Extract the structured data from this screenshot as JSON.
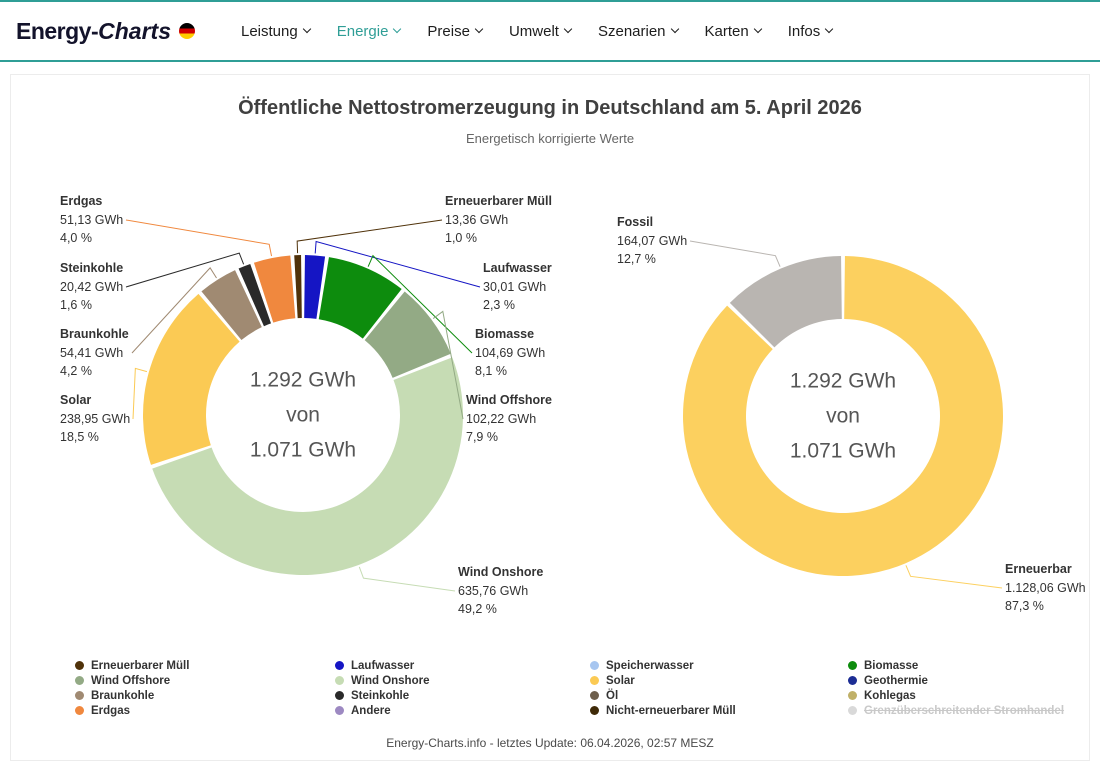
{
  "header": {
    "logo": {
      "part1": "Energy-",
      "part2": "Charts"
    },
    "nav": [
      {
        "label": "Leistung"
      },
      {
        "label": "Energie"
      },
      {
        "label": "Preise"
      },
      {
        "label": "Umwelt"
      },
      {
        "label": "Szenarien"
      },
      {
        "label": "Karten"
      },
      {
        "label": "Infos"
      }
    ]
  },
  "main": {
    "title": "Öffentliche Nettostromerzeugung in Deutschland am 5. April 2026",
    "subtitle": "Energetisch korrigierte Werte"
  },
  "chart_data": [
    {
      "type": "pie",
      "donut": true,
      "unit": "GWh",
      "center_label": {
        "line1": "1.292 GWh",
        "line2": "von",
        "line3": "1.071 GWh"
      },
      "slices": [
        {
          "name": "Laufwasser",
          "value": 30.01,
          "value_label": "30,01 GWh",
          "pct": 2.3,
          "pct_label": "2,3 %",
          "color": "#1515c4"
        },
        {
          "name": "Biomasse",
          "value": 104.69,
          "value_label": "104,69 GWh",
          "pct": 8.1,
          "pct_label": "8,1 %",
          "color": "#0d8c0d"
        },
        {
          "name": "Wind Offshore",
          "value": 102.22,
          "value_label": "102,22 GWh",
          "pct": 7.9,
          "pct_label": "7,9 %",
          "color": "#93aa85"
        },
        {
          "name": "Wind Onshore",
          "value": 635.76,
          "value_label": "635,76 GWh",
          "pct": 49.2,
          "pct_label": "49,2 %",
          "color": "#c6dcb4"
        },
        {
          "name": "Solar",
          "value": 238.95,
          "value_label": "238,95 GWh",
          "pct": 18.5,
          "pct_label": "18,5 %",
          "color": "#fbca54"
        },
        {
          "name": "Braunkohle",
          "value": 54.41,
          "value_label": "54,41 GWh",
          "pct": 4.2,
          "pct_label": "4,2 %",
          "color": "#a08a72"
        },
        {
          "name": "Steinkohle",
          "value": 20.42,
          "value_label": "20,42 GWh",
          "pct": 1.6,
          "pct_label": "1,6 %",
          "color": "#2a2a2a"
        },
        {
          "name": "Erdgas",
          "value": 51.13,
          "value_label": "51,13 GWh",
          "pct": 4.0,
          "pct_label": "4,0 %",
          "color": "#f0883e"
        },
        {
          "name": "Erneuerbarer Müll",
          "value": 13.36,
          "value_label": "13,36 GWh",
          "pct": 1.0,
          "pct_label": "1,0 %",
          "color": "#50320a"
        }
      ]
    },
    {
      "type": "pie",
      "donut": true,
      "unit": "GWh",
      "center_label": {
        "line1": "1.292 GWh",
        "line2": "von",
        "line3": "1.071 GWh"
      },
      "slices": [
        {
          "name": "Erneuerbar",
          "value": 1128.06,
          "value_label": "1.128,06 GWh",
          "pct": 87.3,
          "pct_label": "87,3 %",
          "color": "#fcd05f"
        },
        {
          "name": "Fossil",
          "value": 164.07,
          "value_label": "164,07 GWh",
          "pct": 12.7,
          "pct_label": "12,7 %",
          "color": "#b9b5b1"
        }
      ]
    }
  ],
  "legend": {
    "columns": [
      {
        "items": [
          {
            "label": "Erneuerbarer Müll",
            "color": "#50320a"
          },
          {
            "label": "Wind Offshore",
            "color": "#93aa85"
          },
          {
            "label": "Braunkohle",
            "color": "#a08a72"
          },
          {
            "label": "Erdgas",
            "color": "#f0883e"
          }
        ]
      },
      {
        "items": [
          {
            "label": "Laufwasser",
            "color": "#1515c4"
          },
          {
            "label": "Wind Onshore",
            "color": "#c6dcb4"
          },
          {
            "label": "Steinkohle",
            "color": "#2a2a2a"
          },
          {
            "label": "Andere",
            "color": "#9d89c2"
          }
        ]
      },
      {
        "items": [
          {
            "label": "Speicherwasser",
            "color": "#a7c6f0"
          },
          {
            "label": "Solar",
            "color": "#fbca54"
          },
          {
            "label": "Öl",
            "color": "#6e5f4c"
          },
          {
            "label": "Nicht-erneuerbarer Müll",
            "color": "#3f2a08"
          }
        ]
      },
      {
        "items": [
          {
            "label": "Biomasse",
            "color": "#0d8c0d"
          },
          {
            "label": "Geothermie",
            "color": "#1c2d94"
          },
          {
            "label": "Kohlegas",
            "color": "#c0b068"
          },
          {
            "label": "Grenzüberschreitender Stromhandel",
            "color": "#d9d9d9",
            "disabled": true
          }
        ]
      }
    ]
  },
  "footer": {
    "link_text": "Energy-Charts.info",
    "rest": " - letztes Update: 06.04.2026, 02:57 MESZ"
  }
}
